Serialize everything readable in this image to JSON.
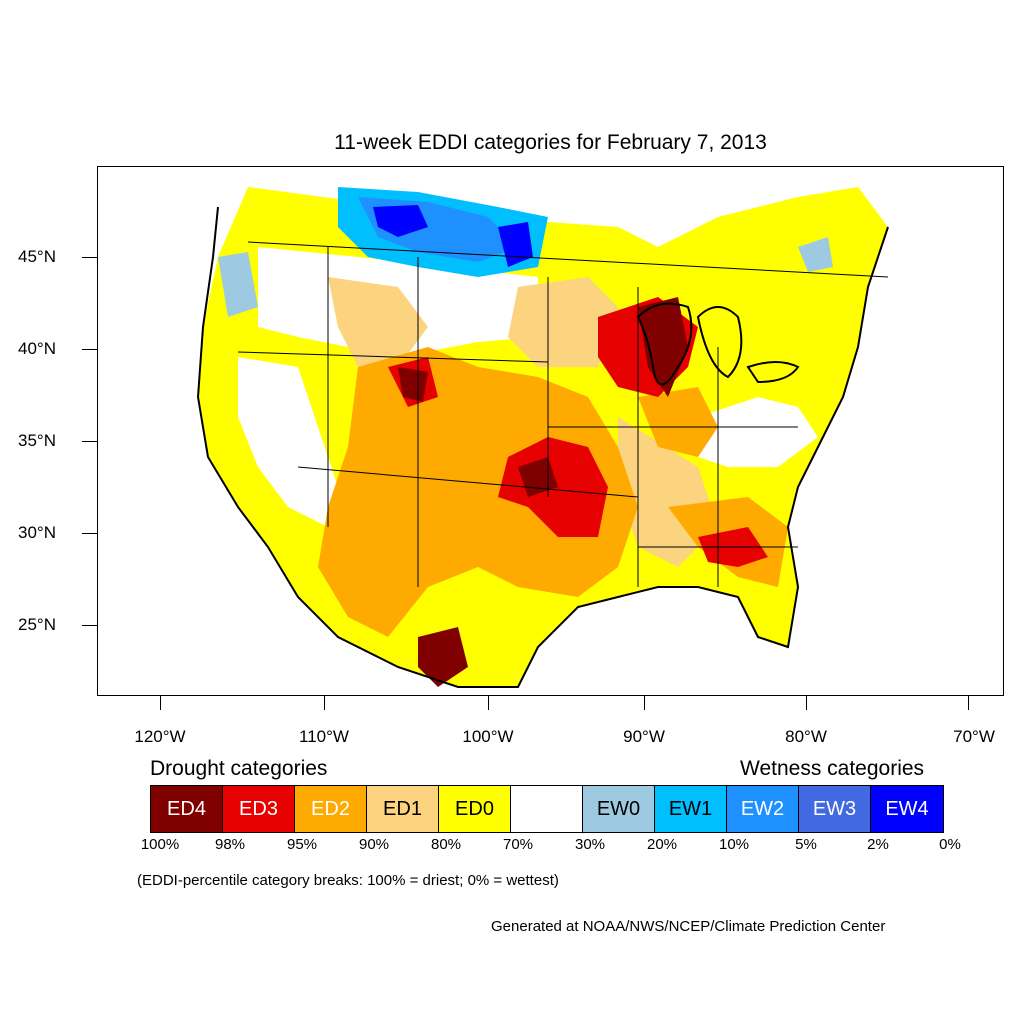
{
  "title": "11-week EDDI categories for February 7, 2013",
  "lat_labels": [
    "45°N",
    "40°N",
    "35°N",
    "30°N",
    "25°N"
  ],
  "lon_labels": [
    "120°W",
    "110°W",
    "100°W",
    "90°W",
    "80°W",
    "70°W"
  ],
  "legend": {
    "drought_title": "Drought categories",
    "wetness_title": "Wetness categories",
    "categories": [
      {
        "label": "ED4",
        "color": "#800000",
        "text_color": "#ffffff"
      },
      {
        "label": "ED3",
        "color": "#e60000",
        "text_color": "#ffffff"
      },
      {
        "label": "ED2",
        "color": "#ffaa00",
        "text_color": "#ffffff"
      },
      {
        "label": "ED1",
        "color": "#fcd37f",
        "text_color": "#000000"
      },
      {
        "label": "ED0",
        "color": "#ffff00",
        "text_color": "#000000"
      },
      {
        "label": "",
        "color": "#ffffff",
        "text_color": "#000000"
      },
      {
        "label": "EW0",
        "color": "#9ecae1",
        "text_color": "#000000"
      },
      {
        "label": "EW1",
        "color": "#00bfff",
        "text_color": "#000000"
      },
      {
        "label": "EW2",
        "color": "#1e90ff",
        "text_color": "#ffffff"
      },
      {
        "label": "EW3",
        "color": "#4169e1",
        "text_color": "#ffffff"
      },
      {
        "label": "EW4",
        "color": "#0000ff",
        "text_color": "#ffffff"
      }
    ],
    "breaks": [
      "100%",
      "98%",
      "95%",
      "90%",
      "80%",
      "70%",
      "30%",
      "20%",
      "10%",
      "5%",
      "2%",
      "0%"
    ]
  },
  "note": "(EDDI-percentile category breaks: 100% = driest; 0% = wettest)",
  "credit": "Generated at NOAA/NWS/NCEP/Climate Prediction Center"
}
